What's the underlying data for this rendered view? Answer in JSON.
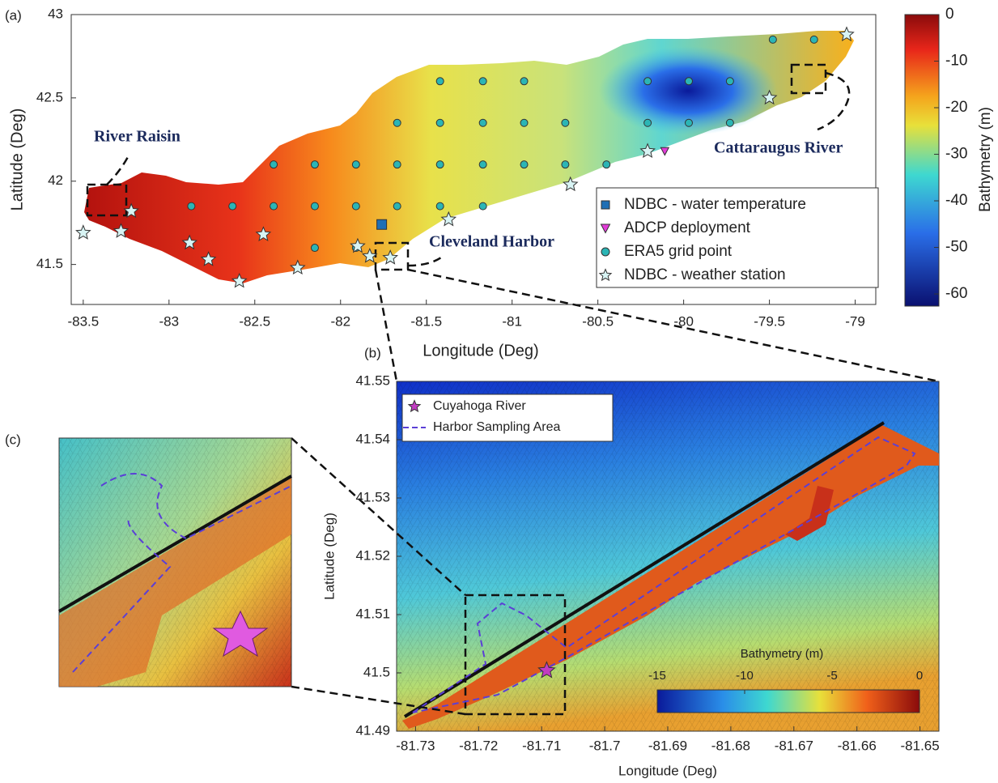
{
  "panels": [
    {
      "label": "(a)",
      "xlabel": "Longitude (Deg)",
      "ylabel": "Latitude (Deg)",
      "xlim": [
        -83.57,
        -78.88
      ],
      "ylim": [
        41.26,
        43
      ],
      "xticks": [
        -83.5,
        -83,
        -82.5,
        -82,
        -81.5,
        -81,
        -80.5,
        -80,
        -79.5,
        -79
      ],
      "yticks": [
        41.5,
        42,
        42.5,
        43
      ],
      "colorbar": {
        "label": "Bathymetry (m)",
        "lim": [
          -62.6,
          0
        ],
        "ticks": [
          0,
          -10,
          -20,
          -30,
          -40,
          -50,
          -60
        ]
      },
      "annotations": [
        "River Raisin",
        "Cleveland Harbor",
        "Cattaraugus River"
      ],
      "series": [
        {
          "name": "NDBC - water temperature",
          "color": "#1f6fb5",
          "marker": "square",
          "points": [
            [
              -81.76,
              41.74
            ]
          ]
        },
        {
          "name": "ADCP deployment",
          "color": "#e23bd8",
          "marker": "triangle",
          "points": [
            [
              -80.11,
              42.18
            ]
          ]
        },
        {
          "name": "ERA5 grid point",
          "color": "#2bb5b5",
          "marker": "circle",
          "points": [
            [
              -79.48,
              42.85
            ],
            [
              -79.24,
              42.85
            ],
            [
              -81.42,
              42.6
            ],
            [
              -81.17,
              42.6
            ],
            [
              -80.93,
              42.6
            ],
            [
              -80.21,
              42.6
            ],
            [
              -79.97,
              42.6
            ],
            [
              -79.73,
              42.6
            ],
            [
              -81.67,
              42.35
            ],
            [
              -81.42,
              42.35
            ],
            [
              -81.17,
              42.35
            ],
            [
              -80.93,
              42.35
            ],
            [
              -80.69,
              42.35
            ],
            [
              -80.21,
              42.35
            ],
            [
              -79.97,
              42.35
            ],
            [
              -79.73,
              42.35
            ],
            [
              -82.39,
              42.1
            ],
            [
              -82.15,
              42.1
            ],
            [
              -81.91,
              42.1
            ],
            [
              -81.67,
              42.1
            ],
            [
              -81.42,
              42.1
            ],
            [
              -81.17,
              42.1
            ],
            [
              -80.93,
              42.1
            ],
            [
              -80.69,
              42.1
            ],
            [
              -80.45,
              42.1
            ],
            [
              -82.87,
              41.85
            ],
            [
              -82.63,
              41.85
            ],
            [
              -82.39,
              41.85
            ],
            [
              -82.15,
              41.85
            ],
            [
              -81.91,
              41.85
            ],
            [
              -81.67,
              41.85
            ],
            [
              -81.42,
              41.85
            ],
            [
              -81.17,
              41.85
            ],
            [
              -82.15,
              41.6
            ],
            [
              -81.91,
              41.6
            ]
          ]
        },
        {
          "name": "NDBC - weather station",
          "color": "#d8f4f4",
          "marker": "star",
          "points": [
            [
              -79.05,
              42.88
            ],
            [
              -79.5,
              42.5
            ],
            [
              -80.21,
              42.18
            ],
            [
              -80.66,
              41.98
            ],
            [
              -81.37,
              41.77
            ],
            [
              -81.71,
              41.54
            ],
            [
              -81.83,
              41.55
            ],
            [
              -81.9,
              41.61
            ],
            [
              -82.25,
              41.48
            ],
            [
              -82.59,
              41.4
            ],
            [
              -82.45,
              41.68
            ],
            [
              -82.77,
              41.53
            ],
            [
              -82.88,
              41.63
            ],
            [
              -83.22,
              41.82
            ],
            [
              -83.28,
              41.7
            ],
            [
              -83.5,
              41.69
            ]
          ]
        }
      ]
    },
    {
      "label": "(b)",
      "xlabel": "Longitude (Deg)",
      "ylabel": "Latitude (Deg)",
      "xlim": [
        -81.733,
        -81.647
      ],
      "ylim": [
        41.49,
        41.55
      ],
      "xticks": [
        -81.73,
        -81.72,
        -81.71,
        -81.7,
        -81.69,
        -81.68,
        -81.67,
        -81.66,
        -81.65
      ],
      "yticks": [
        41.49,
        41.5,
        41.51,
        41.52,
        41.53,
        41.54,
        41.55
      ],
      "colorbar": {
        "label": "Bathymetry (m)",
        "lim": [
          -15,
          0
        ],
        "ticks": [
          -15,
          -10,
          -5,
          0
        ]
      },
      "series": [
        {
          "name": "Cuyahoga River",
          "color": "#c23cc2",
          "marker": "star",
          "points": [
            [
              -81.7092,
              41.5004
            ]
          ]
        },
        {
          "name": "Harbor Sampling Area",
          "color": "#5b3fd6",
          "marker": "dashed-line"
        }
      ]
    },
    {
      "label": "(c)"
    }
  ]
}
